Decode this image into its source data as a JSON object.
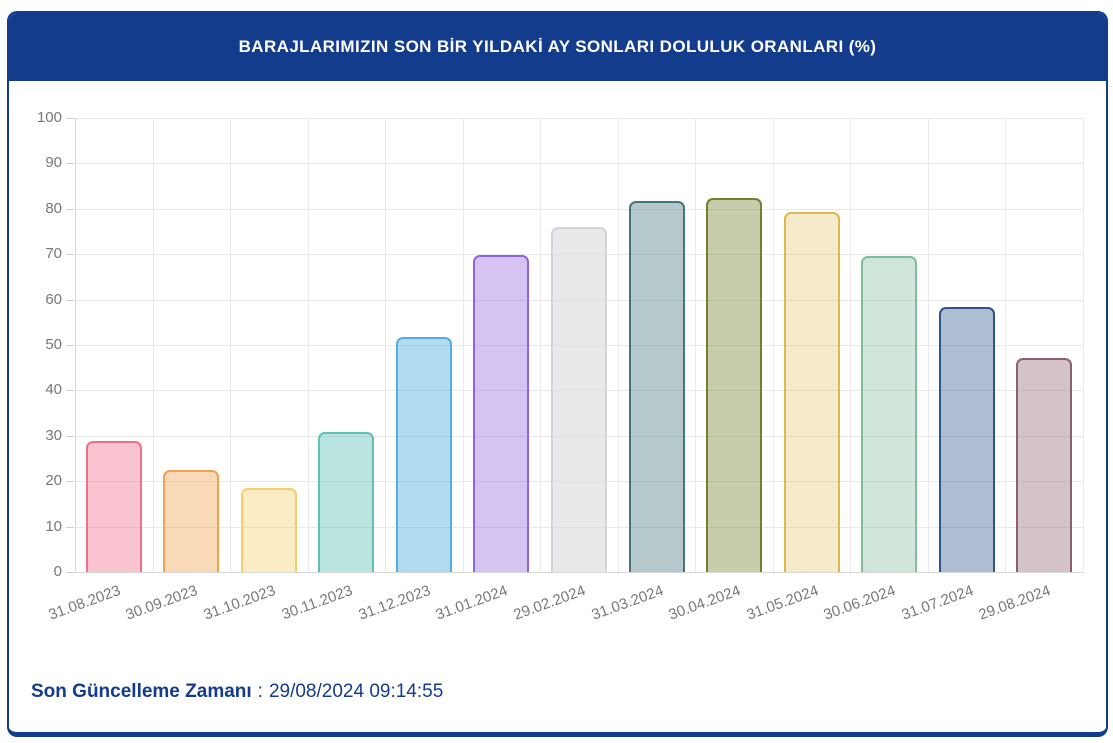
{
  "header": {
    "title": "BARAJLARIMIZIN SON BİR YILDAKİ AY SONLARI DOLULUK ORANLARI (%)"
  },
  "theme": {
    "accent_navy": "#143C8C",
    "header_text": "#FFFFFF",
    "axis_text": "#777777",
    "grid_color": "#E9E9E9",
    "background": "#FFFFFF"
  },
  "chart_data": {
    "type": "bar",
    "title": "BARAJLARIMIZIN SON BİR YILDAKİ AY SONLARI DOLULUK ORANLARI (%)",
    "xlabel": "",
    "ylabel": "",
    "ylim": [
      0,
      100
    ],
    "ytick_step": 10,
    "grid": true,
    "legend": false,
    "categories": [
      "31.08.2023",
      "30.09.2023",
      "31.10.2023",
      "30.11.2023",
      "31.12.2023",
      "31.01.2024",
      "29.02.2024",
      "31.03.2024",
      "30.04.2024",
      "31.05.2024",
      "30.06.2024",
      "31.07.2024",
      "29.08.2024"
    ],
    "values": [
      28.9,
      22.5,
      18.4,
      30.8,
      51.8,
      69.8,
      76.1,
      81.7,
      82.3,
      79.4,
      69.5,
      58.3,
      47.1
    ],
    "bar_colors": [
      {
        "name": "pink",
        "fill": "rgba(241,112,142,0.41)",
        "border": "#F1708E"
      },
      {
        "name": "orange",
        "fill": "rgba(243,161,79,0.40)",
        "border": "#F3A14F"
      },
      {
        "name": "yellow",
        "fill": "rgba(245,205,105,0.38)",
        "border": "#F5CD69"
      },
      {
        "name": "teal",
        "fill": "rgba(95,193,183,0.43)",
        "border": "#5FC1B7"
      },
      {
        "name": "sky-blue",
        "fill": "rgba(85,172,224,0.45)",
        "border": "#55ACE0"
      },
      {
        "name": "lavender",
        "fill": "rgba(145,99,221,0.38)",
        "border": "#9163DD"
      },
      {
        "name": "light-gray",
        "fill": "rgba(211,211,217,0.50)",
        "border": "#D3D3D9"
      },
      {
        "name": "slate-teal",
        "fill": "rgba(70,118,125,0.40)",
        "border": "#46767D"
      },
      {
        "name": "olive",
        "fill": "rgba(117,128,46,0.40)",
        "border": "#75802E"
      },
      {
        "name": "wheat",
        "fill": "rgba(221,184,81,0.30)",
        "border": "#DDB851"
      },
      {
        "name": "mint",
        "fill": "rgba(129,187,157,0.37)",
        "border": "#81BB9D"
      },
      {
        "name": "steel-blue",
        "fill": "rgba(47,85,140,0.39)",
        "border": "#2F558C"
      },
      {
        "name": "rose-gray",
        "fill": "rgba(139,94,112,0.38)",
        "border": "#8B5E70"
      }
    ]
  },
  "footer": {
    "label": "Son Güncelleme Zamanı",
    "separator": ":",
    "value": "29/08/2024 09:14:55"
  }
}
